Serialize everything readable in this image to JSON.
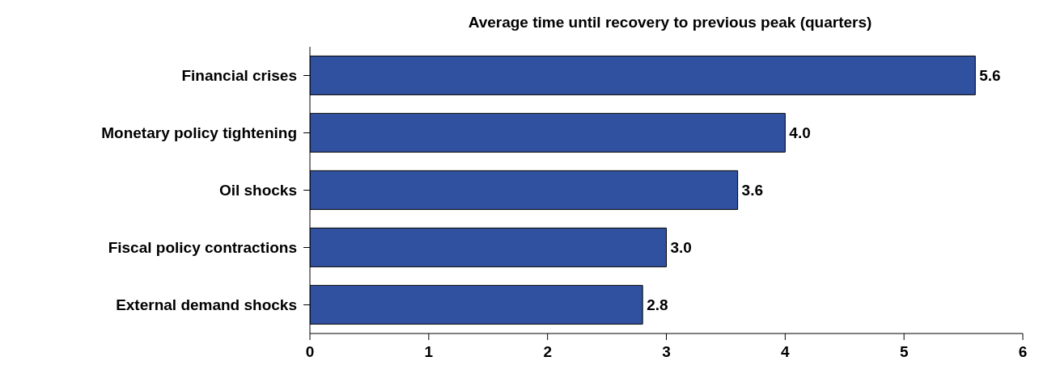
{
  "chart_data": {
    "type": "bar",
    "orientation": "horizontal",
    "title": "Average time until recovery to previous peak (quarters)",
    "categories": [
      "Financial crises",
      "Monetary policy tightening",
      "Oil shocks",
      "Fiscal policy contractions",
      "External demand shocks"
    ],
    "values": [
      5.6,
      4.0,
      3.6,
      3.0,
      2.8
    ],
    "color": "#3050a0",
    "value_labels": [
      "5.6",
      "4.0",
      "3.6",
      "3.0",
      "2.8"
    ],
    "xlim": [
      0,
      6
    ],
    "xticks": [
      0,
      1,
      2,
      3,
      4,
      5,
      6
    ],
    "grid": false
  }
}
